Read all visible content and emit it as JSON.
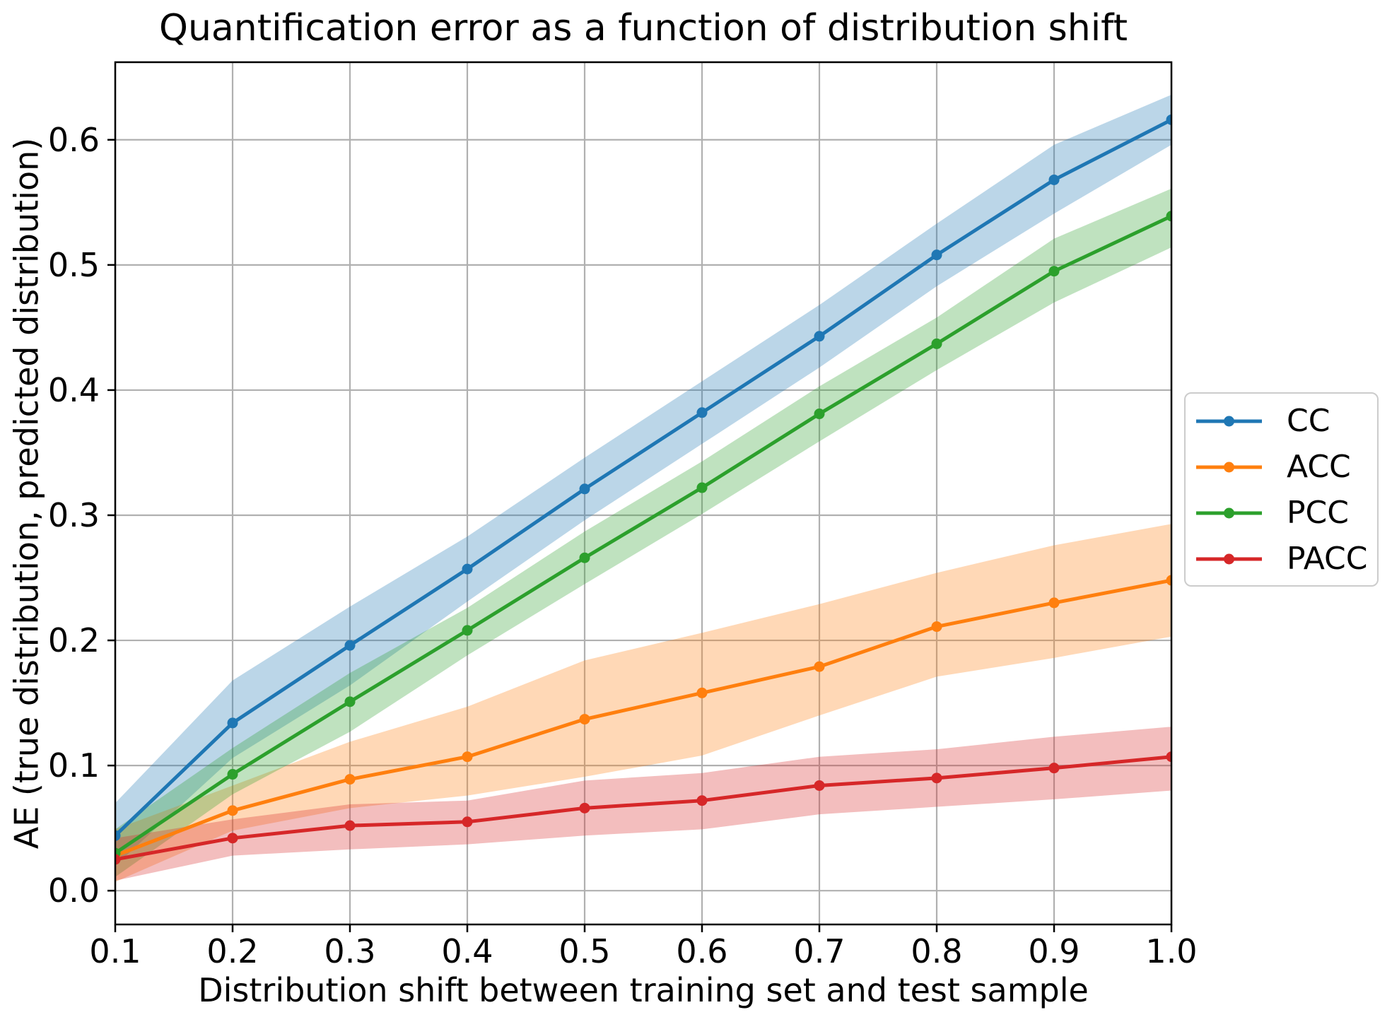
{
  "chart_data": {
    "type": "line",
    "title": "Quantification error as a function of distribution shift",
    "xlabel": "Distribution shift between training set and test sample",
    "ylabel": "AE (true distribution, predicted distribution)",
    "x": [
      0.1,
      0.2,
      0.3,
      0.4,
      0.5,
      0.6,
      0.7,
      0.8,
      0.9,
      1.0
    ],
    "xlim": [
      0.1,
      1.0
    ],
    "ylim": [
      -0.027,
      0.662
    ],
    "xticks": [
      "0.1",
      "0.2",
      "0.3",
      "0.4",
      "0.5",
      "0.6",
      "0.7",
      "0.8",
      "0.9",
      "1.0"
    ],
    "yticks": [
      "0.0",
      "0.1",
      "0.2",
      "0.3",
      "0.4",
      "0.5",
      "0.6"
    ],
    "grid": true,
    "grid_color": "#b0b0b0",
    "spine_color": "#000000",
    "band_opacity": 0.3,
    "legend_position": "outside center right",
    "series": [
      {
        "name": "CC",
        "color": "#1f77b4",
        "values": [
          0.044,
          0.134,
          0.196,
          0.257,
          0.321,
          0.382,
          0.443,
          0.508,
          0.568,
          0.616
        ],
        "band_lower": [
          0.02,
          0.106,
          0.164,
          0.231,
          0.296,
          0.357,
          0.418,
          0.483,
          0.541,
          0.596
        ],
        "band_upper": [
          0.07,
          0.168,
          0.227,
          0.283,
          0.346,
          0.407,
          0.468,
          0.533,
          0.596,
          0.636
        ]
      },
      {
        "name": "ACC",
        "color": "#ff7f0e",
        "values": [
          0.028,
          0.064,
          0.089,
          0.107,
          0.137,
          0.158,
          0.179,
          0.211,
          0.23,
          0.248
        ],
        "band_lower": [
          0.007,
          0.048,
          0.066,
          0.076,
          0.091,
          0.108,
          0.14,
          0.171,
          0.186,
          0.203
        ],
        "band_upper": [
          0.049,
          0.084,
          0.119,
          0.147,
          0.184,
          0.206,
          0.229,
          0.254,
          0.276,
          0.293
        ]
      },
      {
        "name": "PCC",
        "color": "#2ca02c",
        "values": [
          0.03,
          0.093,
          0.151,
          0.208,
          0.266,
          0.322,
          0.381,
          0.437,
          0.495,
          0.539
        ],
        "band_lower": [
          0.011,
          0.077,
          0.127,
          0.188,
          0.245,
          0.301,
          0.359,
          0.416,
          0.47,
          0.514
        ],
        "band_upper": [
          0.049,
          0.114,
          0.174,
          0.226,
          0.287,
          0.343,
          0.403,
          0.458,
          0.521,
          0.561
        ]
      },
      {
        "name": "PACC",
        "color": "#d62728",
        "values": [
          0.025,
          0.042,
          0.052,
          0.055,
          0.066,
          0.072,
          0.084,
          0.09,
          0.098,
          0.107
        ],
        "band_lower": [
          0.008,
          0.028,
          0.033,
          0.037,
          0.044,
          0.049,
          0.061,
          0.067,
          0.073,
          0.08
        ],
        "band_upper": [
          0.042,
          0.057,
          0.069,
          0.072,
          0.088,
          0.094,
          0.107,
          0.113,
          0.123,
          0.131
        ]
      }
    ]
  }
}
